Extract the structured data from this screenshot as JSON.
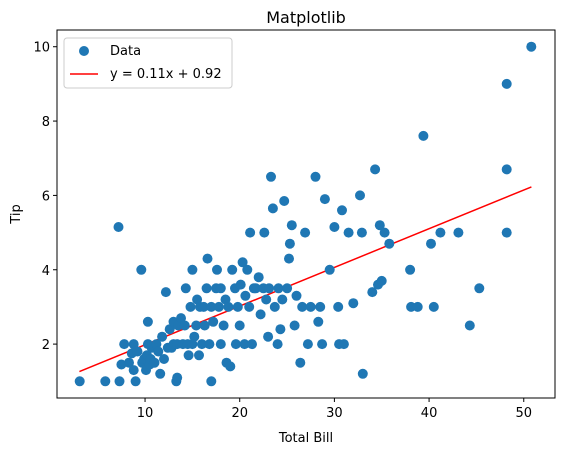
{
  "chart_data": {
    "type": "scatter",
    "title": "Matplotlib",
    "xlabel": "Total Bill",
    "ylabel": "Tip",
    "xlim": [
      0.7,
      53.3
    ],
    "ylim": [
      0.55,
      10.45
    ],
    "xticks": [
      10,
      20,
      30,
      40,
      50
    ],
    "yticks": [
      2,
      4,
      6,
      8,
      10
    ],
    "grid": false,
    "legend_position": "top-left",
    "series": [
      {
        "name": "Data",
        "kind": "scatter",
        "color": "#1f77b4",
        "points": [
          [
            3.1,
            1.0
          ],
          [
            5.8,
            1.0
          ],
          [
            7.3,
            1.0
          ],
          [
            9.0,
            1.0
          ],
          [
            7.2,
            5.15
          ],
          [
            7.5,
            1.45
          ],
          [
            7.8,
            2.0
          ],
          [
            8.3,
            1.5
          ],
          [
            8.6,
            1.75
          ],
          [
            8.8,
            1.3
          ],
          [
            8.8,
            2.0
          ],
          [
            9.2,
            1.8
          ],
          [
            9.6,
            4.0
          ],
          [
            9.7,
            1.5
          ],
          [
            9.9,
            1.6
          ],
          [
            10.1,
            1.3
          ],
          [
            10.2,
            1.7
          ],
          [
            10.3,
            2.0
          ],
          [
            10.3,
            2.6
          ],
          [
            10.5,
            1.45
          ],
          [
            10.6,
            1.6
          ],
          [
            10.7,
            1.9
          ],
          [
            11.0,
            1.5
          ],
          [
            11.2,
            2.0
          ],
          [
            11.4,
            1.8
          ],
          [
            11.6,
            1.2
          ],
          [
            11.8,
            2.2
          ],
          [
            12.0,
            1.6
          ],
          [
            12.2,
            3.4
          ],
          [
            12.4,
            1.9
          ],
          [
            12.6,
            2.4
          ],
          [
            12.8,
            1.9
          ],
          [
            13.0,
            2.0
          ],
          [
            13.0,
            2.6
          ],
          [
            13.3,
            1.0
          ],
          [
            13.4,
            1.1
          ],
          [
            13.4,
            2.0
          ],
          [
            13.5,
            2.5
          ],
          [
            13.8,
            2.7
          ],
          [
            14.0,
            2.0
          ],
          [
            14.2,
            2.5
          ],
          [
            14.3,
            3.5
          ],
          [
            14.5,
            2.0
          ],
          [
            14.6,
            1.7
          ],
          [
            14.8,
            3.0
          ],
          [
            15.0,
            2.0
          ],
          [
            15.0,
            4.0
          ],
          [
            15.2,
            2.2
          ],
          [
            15.4,
            2.5
          ],
          [
            15.5,
            3.2
          ],
          [
            15.7,
            1.7
          ],
          [
            15.8,
            3.0
          ],
          [
            16.0,
            2.0
          ],
          [
            16.2,
            3.0
          ],
          [
            16.3,
            2.5
          ],
          [
            16.5,
            3.5
          ],
          [
            16.6,
            4.3
          ],
          [
            16.8,
            2.0
          ],
          [
            17.0,
            1.0
          ],
          [
            17.0,
            3.0
          ],
          [
            17.2,
            2.6
          ],
          [
            17.5,
            3.5
          ],
          [
            17.6,
            4.0
          ],
          [
            17.8,
            3.0
          ],
          [
            18.0,
            2.0
          ],
          [
            18.0,
            3.5
          ],
          [
            18.3,
            2.5
          ],
          [
            18.5,
            3.2
          ],
          [
            18.6,
            1.5
          ],
          [
            18.8,
            3.0
          ],
          [
            19.0,
            1.4
          ],
          [
            19.2,
            4.0
          ],
          [
            19.5,
            3.5
          ],
          [
            19.6,
            2.0
          ],
          [
            19.8,
            3.0
          ],
          [
            20.0,
            2.5
          ],
          [
            20.1,
            3.6
          ],
          [
            20.3,
            4.2
          ],
          [
            20.5,
            2.0
          ],
          [
            20.6,
            3.3
          ],
          [
            20.8,
            4.0
          ],
          [
            21.0,
            3.0
          ],
          [
            21.1,
            5.0
          ],
          [
            21.3,
            2.0
          ],
          [
            21.5,
            3.5
          ],
          [
            21.7,
            3.5
          ],
          [
            22.0,
            3.8
          ],
          [
            22.2,
            2.8
          ],
          [
            22.5,
            3.5
          ],
          [
            22.6,
            5.0
          ],
          [
            22.8,
            3.2
          ],
          [
            23.0,
            2.2
          ],
          [
            23.1,
            3.5
          ],
          [
            23.3,
            6.5
          ],
          [
            23.5,
            5.65
          ],
          [
            23.7,
            3.0
          ],
          [
            24.0,
            2.0
          ],
          [
            24.1,
            3.5
          ],
          [
            24.3,
            2.4
          ],
          [
            24.5,
            3.2
          ],
          [
            24.7,
            5.85
          ],
          [
            25.0,
            3.5
          ],
          [
            25.2,
            4.3
          ],
          [
            25.3,
            4.7
          ],
          [
            25.5,
            5.2
          ],
          [
            25.8,
            2.5
          ],
          [
            26.0,
            3.3
          ],
          [
            26.4,
            1.5
          ],
          [
            26.6,
            3.0
          ],
          [
            26.9,
            5.0
          ],
          [
            27.2,
            2.0
          ],
          [
            27.5,
            3.0
          ],
          [
            28.0,
            6.5
          ],
          [
            28.3,
            2.6
          ],
          [
            28.5,
            3.0
          ],
          [
            28.7,
            2.0
          ],
          [
            29.0,
            5.9
          ],
          [
            29.5,
            4.0
          ],
          [
            30.0,
            5.15
          ],
          [
            30.4,
            3.0
          ],
          [
            30.5,
            2.0
          ],
          [
            30.8,
            5.6
          ],
          [
            31.0,
            2.0
          ],
          [
            31.5,
            5.0
          ],
          [
            32.0,
            3.1
          ],
          [
            32.7,
            6.0
          ],
          [
            32.9,
            5.0
          ],
          [
            33.0,
            1.2
          ],
          [
            34.0,
            3.4
          ],
          [
            34.3,
            6.7
          ],
          [
            34.6,
            3.6
          ],
          [
            34.8,
            5.2
          ],
          [
            35.0,
            3.7
          ],
          [
            35.3,
            5.0
          ],
          [
            35.8,
            4.7
          ],
          [
            38.0,
            4.0
          ],
          [
            38.1,
            3.0
          ],
          [
            38.8,
            3.0
          ],
          [
            39.4,
            7.6
          ],
          [
            40.2,
            4.7
          ],
          [
            40.5,
            3.0
          ],
          [
            41.2,
            5.0
          ],
          [
            43.1,
            5.0
          ],
          [
            44.3,
            2.5
          ],
          [
            45.3,
            3.5
          ],
          [
            48.2,
            9.0
          ],
          [
            48.2,
            6.7
          ],
          [
            48.2,
            5.0
          ],
          [
            50.8,
            10.0
          ]
        ]
      },
      {
        "name": "y = 0.11x + 0.92",
        "kind": "line",
        "color": "#ff0000",
        "x": [
          3.07,
          50.81
        ],
        "y": [
          1.26,
          6.23
        ]
      }
    ]
  }
}
